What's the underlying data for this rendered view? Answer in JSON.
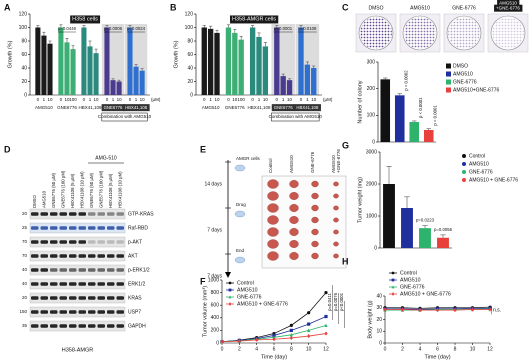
{
  "panels": {
    "a": {
      "type": "grouped_bar",
      "label": "A",
      "title": "H358 cells",
      "y_label": "Growth (%)",
      "ylim": [
        0,
        120
      ],
      "yticks": [
        0,
        20,
        40,
        60,
        80,
        100,
        120
      ],
      "unit_label": "(μM)",
      "combination_label": "Combination with AMG510",
      "groups": [
        {
          "name": "AMG510",
          "color": "#1a1a1a",
          "doses": [
            0,
            1,
            10
          ],
          "values": [
            100,
            88,
            76
          ],
          "errors": [
            3,
            5,
            4
          ]
        },
        {
          "name": "GNE6776",
          "color": "#3dae74",
          "doses": [
            0,
            10,
            100
          ],
          "values": [
            100,
            78,
            68
          ],
          "errors": [
            4,
            6,
            5
          ],
          "p_label": "p=0.0446"
        },
        {
          "name": "HBX41,108",
          "color": "#2b8a7e",
          "doses": [
            0,
            1,
            10
          ],
          "values": [
            100,
            72,
            62
          ],
          "errors": [
            3,
            8,
            6
          ]
        },
        {
          "name": "GNE6776",
          "color": "#4a3b8f",
          "combination": true,
          "doses": [
            0,
            1,
            10
          ],
          "values": [
            100,
            22,
            20
          ],
          "errors": [
            3,
            2,
            2
          ],
          "p_label": "p=0.0006"
        },
        {
          "name": "HBX41,108",
          "color": "#2f6fd0",
          "combination": true,
          "doses": [
            0,
            1,
            10
          ],
          "values": [
            100,
            42,
            36
          ],
          "errors": [
            3,
            3,
            3
          ],
          "p_label": "p=0.0024"
        }
      ]
    },
    "b": {
      "type": "grouped_bar",
      "label": "B",
      "title": "H358-AMGR cells",
      "y_label": "Growth (%)",
      "ylim": [
        0,
        120
      ],
      "yticks": [
        0,
        20,
        40,
        60,
        80,
        100,
        120
      ],
      "unit_label": "(μM)",
      "combination_label": "Combination with AMG510",
      "groups": [
        {
          "name": "AMG510",
          "color": "#1a1a1a",
          "doses": [
            0,
            1,
            10
          ],
          "values": [
            100,
            98,
            92
          ],
          "errors": [
            3,
            4,
            4
          ]
        },
        {
          "name": "GNE6776",
          "color": "#3dae74",
          "doses": [
            0,
            10,
            100
          ],
          "values": [
            100,
            92,
            82
          ],
          "errors": [
            4,
            5,
            5
          ]
        },
        {
          "name": "HBX41,108",
          "color": "#2b8a7e",
          "doses": [
            0,
            1,
            10
          ],
          "values": [
            100,
            86,
            72
          ],
          "errors": [
            3,
            6,
            6
          ]
        },
        {
          "name": "GNE6776",
          "color": "#4a3b8f",
          "combination": true,
          "doses": [
            0,
            1,
            10
          ],
          "values": [
            100,
            28,
            22
          ],
          "errors": [
            3,
            3,
            2
          ],
          "p_label": "p<0.0001"
        },
        {
          "name": "HBX41,108",
          "color": "#2f6fd0",
          "combination": true,
          "doses": [
            0,
            1,
            10
          ],
          "values": [
            100,
            45,
            40
          ],
          "errors": [
            3,
            4,
            3
          ],
          "p_label": "p=0.0108"
        }
      ]
    },
    "c": {
      "type": "bar",
      "label": "C",
      "image_labels": [
        [
          "DMSO"
        ],
        [
          "AMG510"
        ],
        [
          "GNE-6776"
        ],
        [
          "AMG510",
          "+GNE-6776"
        ]
      ],
      "y_label": "Number of colony",
      "ylim": [
        0,
        300
      ],
      "yticks": [
        0,
        100,
        200,
        300
      ],
      "legend_marker": "square",
      "p_label_rotated": true,
      "bars": [
        {
          "name": "DMSO",
          "color": "#111111",
          "value": 235,
          "error": 5
        },
        {
          "name": "AMG510",
          "color": "#1f2f9e",
          "value": 175,
          "error": 6,
          "p_label": "p = 0.0002"
        },
        {
          "name": "GNE-6776",
          "color": "#2db36b",
          "value": 75,
          "error": 4,
          "p_label": "p < 0.0001"
        },
        {
          "name": "AMG510+GNE-6776",
          "color": "#e8413c",
          "value": 45,
          "error": 5,
          "p_label": "p < 0.0001"
        }
      ]
    },
    "d": {
      "type": "blot",
      "label": "D",
      "treatment_label": "AMG-510",
      "cell_line": "H358-AMGR",
      "lanes": [
        "DMSO",
        "AMG510",
        "GNE6776 (50 μM)",
        "GNE6776 (100 μM)",
        "HBX41108 (5 μM)",
        "HBX41108 (10 μM)",
        "GNE6776 (50 μM)",
        "GNE6776 (100 μM)",
        "HBX41108 (5 μM)",
        "HBX41108 (10 μM)"
      ],
      "rows": [
        {
          "name": "GTP-KRAS",
          "mw": 20
        },
        {
          "name": "Raf-RBD",
          "mw": 25
        },
        {
          "name": "p-AKT",
          "mw": 70
        },
        {
          "name": "AKT",
          "mw": 70
        },
        {
          "name": "p-ERK1/2",
          "mw": 40
        },
        {
          "name": "ERK1/2",
          "mw": 40
        },
        {
          "name": "KRAS",
          "mw": 20
        },
        {
          "name": "USP7",
          "mw": 150
        },
        {
          "name": "GAPDH",
          "mw": 35
        }
      ]
    },
    "e": {
      "type": "schematic",
      "label": "E",
      "steps": [
        {
          "icon": "AMGR cells",
          "duration": "14 days"
        },
        {
          "icon": "Drug",
          "duration": "7 days"
        },
        {
          "icon": "End",
          "duration": "7 days"
        }
      ],
      "columns": [
        [
          "Control"
        ],
        [
          "AMG510"
        ],
        [
          "GNE-6776"
        ],
        [
          "AMG510",
          "+GNE-6776"
        ]
      ]
    },
    "f": {
      "type": "line",
      "label": "F",
      "x_label": "Time (day)",
      "y_label": "Tumor volume (mm³)",
      "xlim": [
        0,
        12
      ],
      "xticks": [
        0,
        2,
        4,
        6,
        8,
        10,
        12
      ],
      "ylim": [
        0,
        1000
      ],
      "yticks": [
        0,
        200,
        400,
        600,
        800,
        1000
      ],
      "x": [
        0,
        2,
        4,
        6,
        8,
        10,
        12
      ],
      "series": [
        {
          "name": "Control",
          "color": "#111111",
          "marker": "circle",
          "values": [
            20,
            45,
            85,
            150,
            280,
            480,
            800
          ]
        },
        {
          "name": "AMG510",
          "color": "#1f2f9e",
          "marker": "square",
          "values": [
            20,
            40,
            70,
            120,
            200,
            300,
            420
          ]
        },
        {
          "name": "GNE-6776",
          "color": "#2db36b",
          "marker": "triangle",
          "values": [
            20,
            35,
            60,
            90,
            130,
            200,
            280
          ]
        },
        {
          "name": "AMG510 + GNE-6776",
          "color": "#e8413c",
          "marker": "diamond",
          "values": [
            20,
            30,
            50,
            60,
            80,
            110,
            150
          ]
        }
      ],
      "p_labels": [
        "p=0.0411",
        "p=0.0076",
        "p<0.0001"
      ]
    },
    "g": {
      "type": "bar",
      "label": "G",
      "y_label": "Tumor weight (mg)",
      "ylim": [
        0,
        3000
      ],
      "yticks": [
        0,
        1000,
        2000,
        3000
      ],
      "legend_marker": "circle",
      "p_label_rotated": false,
      "bars": [
        {
          "name": "Control",
          "color": "#111111",
          "value": 2000,
          "error": 550
        },
        {
          "name": "AMG510",
          "color": "#1f2f9e",
          "value": 1250,
          "error": 350
        },
        {
          "name": "GNE-6776",
          "color": "#2db36b",
          "value": 620,
          "error": 80,
          "p_label": "p=0.0223"
        },
        {
          "name": "AMG510 + GNE-6776",
          "color": "#e8413c",
          "value": 320,
          "error": 90,
          "p_label": "p=0.0055"
        }
      ]
    },
    "h": {
      "type": "line",
      "label": "H",
      "x_label": "Time (day)",
      "y_label": "Body weight (g)",
      "xlim": [
        0,
        12
      ],
      "xticks": [
        0,
        2,
        4,
        6,
        8,
        10,
        12
      ],
      "ylim": [
        0,
        40
      ],
      "yticks": [
        0,
        10,
        20,
        30,
        40
      ],
      "x": [
        0,
        2,
        4,
        6,
        8,
        10,
        12
      ],
      "series": [
        {
          "name": "Control",
          "color": "#111111",
          "marker": "circle",
          "values": [
            30,
            30,
            29.5,
            30,
            30,
            30,
            30.5
          ]
        },
        {
          "name": "AMG510",
          "color": "#1f2f9e",
          "marker": "square",
          "values": [
            29,
            29,
            28.5,
            29,
            29,
            29.5,
            29.5
          ]
        },
        {
          "name": "GNE-6776",
          "color": "#2db36b",
          "marker": "triangle",
          "values": [
            28,
            28,
            28,
            28.5,
            28.5,
            28.5,
            29
          ]
        },
        {
          "name": "AMG510 + GNE-6776",
          "color": "#e8413c",
          "marker": "diamond",
          "values": [
            28.5,
            28.5,
            28,
            28,
            28,
            28.5,
            28.5
          ]
        }
      ],
      "annotation": "n.s."
    }
  }
}
